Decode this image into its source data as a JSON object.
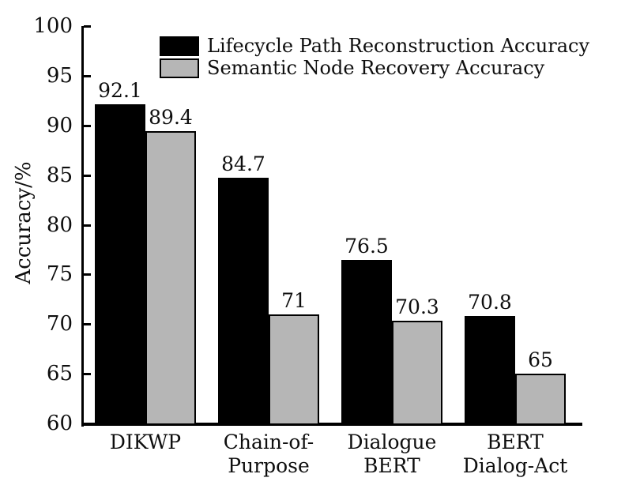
{
  "chart_data": {
    "type": "bar",
    "title": "",
    "ylabel": "Accuracy/%",
    "ylim": [
      60,
      100
    ],
    "yticks": [
      100,
      95,
      90,
      85,
      80,
      75,
      70,
      65,
      60
    ],
    "grid": false,
    "legend_position": "top-inside",
    "axis_color": "#000000",
    "background_color": "#ffffff",
    "categories": [
      [
        "DIKWP"
      ],
      [
        "Chain-of-",
        "Purpose"
      ],
      [
        "Dialogue",
        "BERT"
      ],
      [
        "BERT",
        "Dialog-Act"
      ]
    ],
    "series": [
      {
        "name": "Lifecycle Path Reconstruction Accuracy",
        "color": "#000000",
        "values": [
          92.1,
          84.7,
          76.5,
          70.8
        ]
      },
      {
        "name": "Semantic Node Recovery Accuracy",
        "color": "#b6b6b6",
        "values": [
          89.4,
          71,
          70.3,
          65
        ]
      }
    ]
  }
}
